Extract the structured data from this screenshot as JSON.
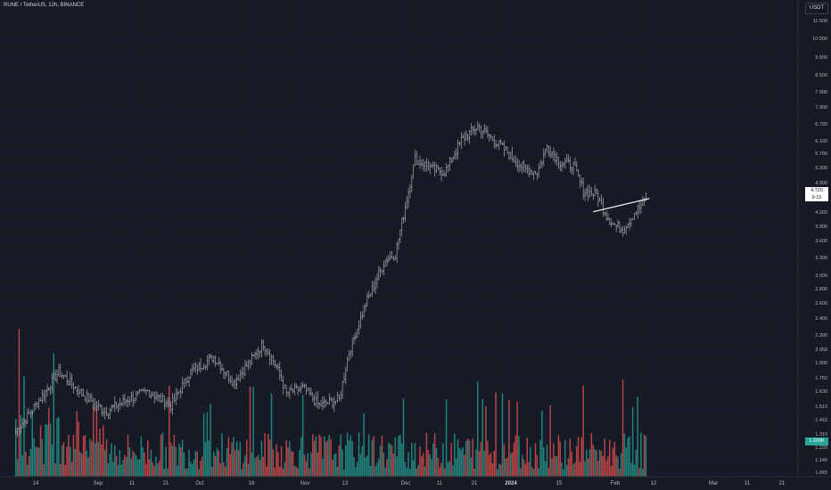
{
  "header": {
    "title": "RUNE / TetherUS, 12h, BINANCE",
    "currency": "USDT"
  },
  "price_axis": {
    "labels": [
      "11.500",
      "10.500",
      "9.500",
      "8.500",
      "7.900",
      "7.300",
      "6.700",
      "6.100",
      "5.700",
      "5.300",
      "4.900",
      "4.500",
      "4.200",
      "3.900",
      "3.600",
      "3.300",
      "3.000",
      "2.800",
      "2.600",
      "2.400",
      "2.200",
      "2.050",
      "1.900",
      "1.750",
      "1.630",
      "1.510",
      "1.410",
      "1.310",
      "1.220",
      "1.140",
      "1.065"
    ]
  },
  "date_axis": {
    "labels": [
      "14",
      "Sep",
      "11",
      "21",
      "Oct",
      "16",
      "Nov",
      "13",
      "Dec",
      "11",
      "21",
      "2024",
      "15",
      "Feb",
      "12",
      "Mar",
      "11",
      "21"
    ]
  },
  "last_price": {
    "value": "4.720",
    "countdown": "9:15"
  },
  "volume_badge": "1.220K",
  "colors": {
    "background": "#161a25",
    "bar": "#a6a8b0",
    "volume_up": "#26a69a",
    "volume_down": "#ef5350",
    "grid": "#1e2230",
    "trendline": "#ffffff"
  },
  "chart_data": {
    "type": "bar",
    "scale": "log",
    "symbol": "RUNE/USDT",
    "interval": "12h",
    "ylim": [
      1.04,
      12.0
    ],
    "anchors": [
      {
        "date": "Aug 8",
        "price": 1.3
      },
      {
        "date": "Aug 14",
        "price": 1.5
      },
      {
        "date": "Aug 21",
        "price": 1.8
      },
      {
        "date": "Aug 28",
        "price": 1.6
      },
      {
        "date": "Sep 4",
        "price": 1.45
      },
      {
        "date": "Sep 11",
        "price": 1.55
      },
      {
        "date": "Sep 17",
        "price": 1.62
      },
      {
        "date": "Sep 24",
        "price": 1.5
      },
      {
        "date": "Sep 30",
        "price": 1.8
      },
      {
        "date": "Oct 7",
        "price": 1.95
      },
      {
        "date": "Oct 13",
        "price": 1.7
      },
      {
        "date": "Oct 18",
        "price": 1.9
      },
      {
        "date": "Oct 22",
        "price": 2.1
      },
      {
        "date": "Oct 26",
        "price": 1.85
      },
      {
        "date": "Oct 29",
        "price": 1.6
      },
      {
        "date": "Nov 3",
        "price": 1.65
      },
      {
        "date": "Nov 8",
        "price": 1.5
      },
      {
        "date": "Nov 14",
        "price": 1.55
      },
      {
        "date": "Nov 17",
        "price": 2.0
      },
      {
        "date": "Nov 22",
        "price": 2.6
      },
      {
        "date": "Nov 28",
        "price": 3.3
      },
      {
        "date": "Dec 1",
        "price": 3.4
      },
      {
        "date": "Dec 4",
        "price": 4.4
      },
      {
        "date": "Dec 7",
        "price": 5.7
      },
      {
        "date": "Dec 12",
        "price": 5.4
      },
      {
        "date": "Dec 16",
        "price": 5.3
      },
      {
        "date": "Dec 21",
        "price": 6.3
      },
      {
        "date": "Dec 26",
        "price": 6.8
      },
      {
        "date": "Dec 31",
        "price": 6.3
      },
      {
        "date": "Jan 4",
        "price": 5.9
      },
      {
        "date": "Jan 9",
        "price": 5.4
      },
      {
        "date": "Jan 13",
        "price": 5.3
      },
      {
        "date": "Jan 16",
        "price": 6.1
      },
      {
        "date": "Jan 20",
        "price": 5.6
      },
      {
        "date": "Jan 24",
        "price": 5.5
      },
      {
        "date": "Jan 27",
        "price": 4.8
      },
      {
        "date": "Jan 31",
        "price": 4.7
      },
      {
        "date": "Feb 3",
        "price": 4.2
      },
      {
        "date": "Feb 5",
        "price": 4.0
      },
      {
        "date": "Feb 8",
        "price": 3.9
      },
      {
        "date": "Feb 12",
        "price": 4.3
      },
      {
        "date": "Feb 15",
        "price": 4.55
      }
    ],
    "last_close": 4.72,
    "trendline": {
      "start": {
        "date": "Jan 30",
        "price": 4.28
      },
      "end": {
        "date": "Feb 16",
        "price": 4.6
      }
    }
  }
}
